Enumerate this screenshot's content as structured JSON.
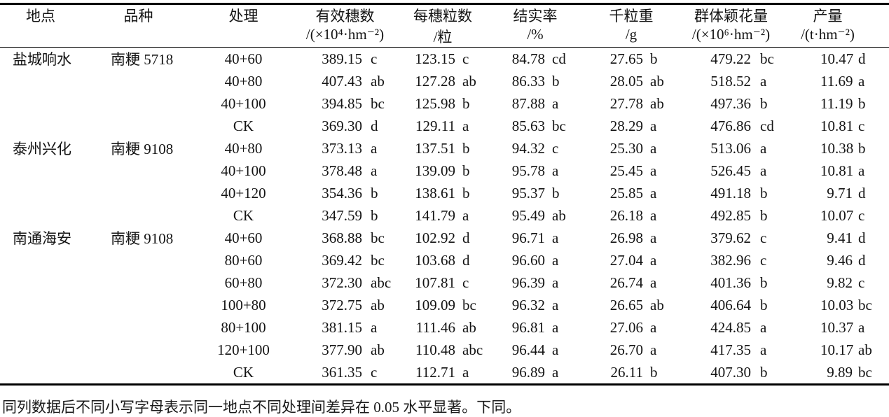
{
  "table": {
    "columns": [
      {
        "key": "location",
        "title": "地点",
        "unit": ""
      },
      {
        "key": "variety",
        "title": "品种",
        "unit": ""
      },
      {
        "key": "treatment",
        "title": "处理",
        "unit": ""
      },
      {
        "key": "panicles",
        "title": "有效穗数",
        "unit": "/(×10⁴·hm⁻²)"
      },
      {
        "key": "grains",
        "title": "每穗粒数",
        "unit": "/粒"
      },
      {
        "key": "seed_set",
        "title": "结实率",
        "unit": "/%"
      },
      {
        "key": "grain_weight",
        "title": "千粒重",
        "unit": "/g"
      },
      {
        "key": "spikelets",
        "title": "群体颖花量",
        "unit": "/(×10⁶·hm⁻²)"
      },
      {
        "key": "yield",
        "title": "产量",
        "unit": "/(t·hm⁻²)"
      }
    ],
    "rows": [
      {
        "location": "盐城响水",
        "variety": "南粳 5718",
        "treatment": "40+60",
        "panicles": {
          "v": "389.15",
          "s": "c"
        },
        "grains": {
          "v": "123.15",
          "s": "c"
        },
        "seed_set": {
          "v": "84.78",
          "s": "cd"
        },
        "grain_weight": {
          "v": "27.65",
          "s": "b"
        },
        "spikelets": {
          "v": "479.22",
          "s": "bc"
        },
        "yield": {
          "v": "10.47",
          "s": "d"
        }
      },
      {
        "location": "",
        "variety": "",
        "treatment": "40+80",
        "panicles": {
          "v": "407.43",
          "s": "ab"
        },
        "grains": {
          "v": "127.28",
          "s": "ab"
        },
        "seed_set": {
          "v": "86.33",
          "s": "b"
        },
        "grain_weight": {
          "v": "28.05",
          "s": "ab"
        },
        "spikelets": {
          "v": "518.52",
          "s": "a"
        },
        "yield": {
          "v": "11.69",
          "s": "a"
        }
      },
      {
        "location": "",
        "variety": "",
        "treatment": "40+100",
        "panicles": {
          "v": "394.85",
          "s": "bc"
        },
        "grains": {
          "v": "125.98",
          "s": "b"
        },
        "seed_set": {
          "v": "87.88",
          "s": "a"
        },
        "grain_weight": {
          "v": "27.78",
          "s": "ab"
        },
        "spikelets": {
          "v": "497.36",
          "s": "b"
        },
        "yield": {
          "v": "11.19",
          "s": "b"
        }
      },
      {
        "location": "",
        "variety": "",
        "treatment": "CK",
        "panicles": {
          "v": "369.30",
          "s": "d"
        },
        "grains": {
          "v": "129.11",
          "s": "a"
        },
        "seed_set": {
          "v": "85.63",
          "s": "bc"
        },
        "grain_weight": {
          "v": "28.29",
          "s": "a"
        },
        "spikelets": {
          "v": "476.86",
          "s": "cd"
        },
        "yield": {
          "v": "10.81",
          "s": "c"
        }
      },
      {
        "location": "泰州兴化",
        "variety": "南粳 9108",
        "treatment": "40+80",
        "panicles": {
          "v": "373.13",
          "s": "a"
        },
        "grains": {
          "v": "137.51",
          "s": "b"
        },
        "seed_set": {
          "v": "94.32",
          "s": "c"
        },
        "grain_weight": {
          "v": "25.30",
          "s": "a"
        },
        "spikelets": {
          "v": "513.06",
          "s": "a"
        },
        "yield": {
          "v": "10.38",
          "s": "b"
        }
      },
      {
        "location": "",
        "variety": "",
        "treatment": "40+100",
        "panicles": {
          "v": "378.48",
          "s": "a"
        },
        "grains": {
          "v": "139.09",
          "s": "b"
        },
        "seed_set": {
          "v": "95.78",
          "s": "a"
        },
        "grain_weight": {
          "v": "25.45",
          "s": "a"
        },
        "spikelets": {
          "v": "526.45",
          "s": "a"
        },
        "yield": {
          "v": "10.81",
          "s": "a"
        }
      },
      {
        "location": "",
        "variety": "",
        "treatment": "40+120",
        "panicles": {
          "v": "354.36",
          "s": "b"
        },
        "grains": {
          "v": "138.61",
          "s": "b"
        },
        "seed_set": {
          "v": "95.37",
          "s": "b"
        },
        "grain_weight": {
          "v": "25.85",
          "s": "a"
        },
        "spikelets": {
          "v": "491.18",
          "s": "b"
        },
        "yield": {
          "v": "9.71",
          "s": "d"
        }
      },
      {
        "location": "",
        "variety": "",
        "treatment": "CK",
        "panicles": {
          "v": "347.59",
          "s": "b"
        },
        "grains": {
          "v": "141.79",
          "s": "a"
        },
        "seed_set": {
          "v": "95.49",
          "s": "ab"
        },
        "grain_weight": {
          "v": "26.18",
          "s": "a"
        },
        "spikelets": {
          "v": "492.85",
          "s": "b"
        },
        "yield": {
          "v": "10.07",
          "s": "c"
        }
      },
      {
        "location": "南通海安",
        "variety": "南粳 9108",
        "treatment": "40+60",
        "panicles": {
          "v": "368.88",
          "s": "bc"
        },
        "grains": {
          "v": "102.92",
          "s": "d"
        },
        "seed_set": {
          "v": "96.71",
          "s": "a"
        },
        "grain_weight": {
          "v": "26.98",
          "s": "a"
        },
        "spikelets": {
          "v": "379.62",
          "s": "c"
        },
        "yield": {
          "v": "9.41",
          "s": "d"
        }
      },
      {
        "location": "",
        "variety": "",
        "treatment": "80+60",
        "panicles": {
          "v": "369.42",
          "s": "bc"
        },
        "grains": {
          "v": "103.68",
          "s": "d"
        },
        "seed_set": {
          "v": "96.60",
          "s": "a"
        },
        "grain_weight": {
          "v": "27.04",
          "s": "a"
        },
        "spikelets": {
          "v": "382.96",
          "s": "c"
        },
        "yield": {
          "v": "9.46",
          "s": "d"
        }
      },
      {
        "location": "",
        "variety": "",
        "treatment": "60+80",
        "panicles": {
          "v": "372.30",
          "s": "abc"
        },
        "grains": {
          "v": "107.81",
          "s": "c"
        },
        "seed_set": {
          "v": "96.39",
          "s": "a"
        },
        "grain_weight": {
          "v": "26.74",
          "s": "a"
        },
        "spikelets": {
          "v": "401.36",
          "s": "b"
        },
        "yield": {
          "v": "9.82",
          "s": "c"
        }
      },
      {
        "location": "",
        "variety": "",
        "treatment": "100+80",
        "panicles": {
          "v": "372.75",
          "s": "ab"
        },
        "grains": {
          "v": "109.09",
          "s": "bc"
        },
        "seed_set": {
          "v": "96.32",
          "s": "a"
        },
        "grain_weight": {
          "v": "26.65",
          "s": "ab"
        },
        "spikelets": {
          "v": "406.64",
          "s": "b"
        },
        "yield": {
          "v": "10.03",
          "s": "bc"
        }
      },
      {
        "location": "",
        "variety": "",
        "treatment": "80+100",
        "panicles": {
          "v": "381.15",
          "s": "a"
        },
        "grains": {
          "v": "111.46",
          "s": "ab"
        },
        "seed_set": {
          "v": "96.81",
          "s": "a"
        },
        "grain_weight": {
          "v": "27.06",
          "s": "a"
        },
        "spikelets": {
          "v": "424.85",
          "s": "a"
        },
        "yield": {
          "v": "10.37",
          "s": "a"
        }
      },
      {
        "location": "",
        "variety": "",
        "treatment": "120+100",
        "panicles": {
          "v": "377.90",
          "s": "ab"
        },
        "grains": {
          "v": "110.48",
          "s": "abc"
        },
        "seed_set": {
          "v": "96.44",
          "s": "a"
        },
        "grain_weight": {
          "v": "26.70",
          "s": "a"
        },
        "spikelets": {
          "v": "417.35",
          "s": "a"
        },
        "yield": {
          "v": "10.17",
          "s": "ab"
        }
      },
      {
        "location": "",
        "variety": "",
        "treatment": "CK",
        "panicles": {
          "v": "361.35",
          "s": "c"
        },
        "grains": {
          "v": "112.71",
          "s": "a"
        },
        "seed_set": {
          "v": "96.89",
          "s": "a"
        },
        "grain_weight": {
          "v": "26.11",
          "s": "b"
        },
        "spikelets": {
          "v": "407.30",
          "s": "b"
        },
        "yield": {
          "v": "9.89",
          "s": "bc"
        }
      }
    ]
  },
  "footnote": "同列数据后不同小写字母表示同一地点不同处理间差异在 0.05 水平显著。下同。"
}
